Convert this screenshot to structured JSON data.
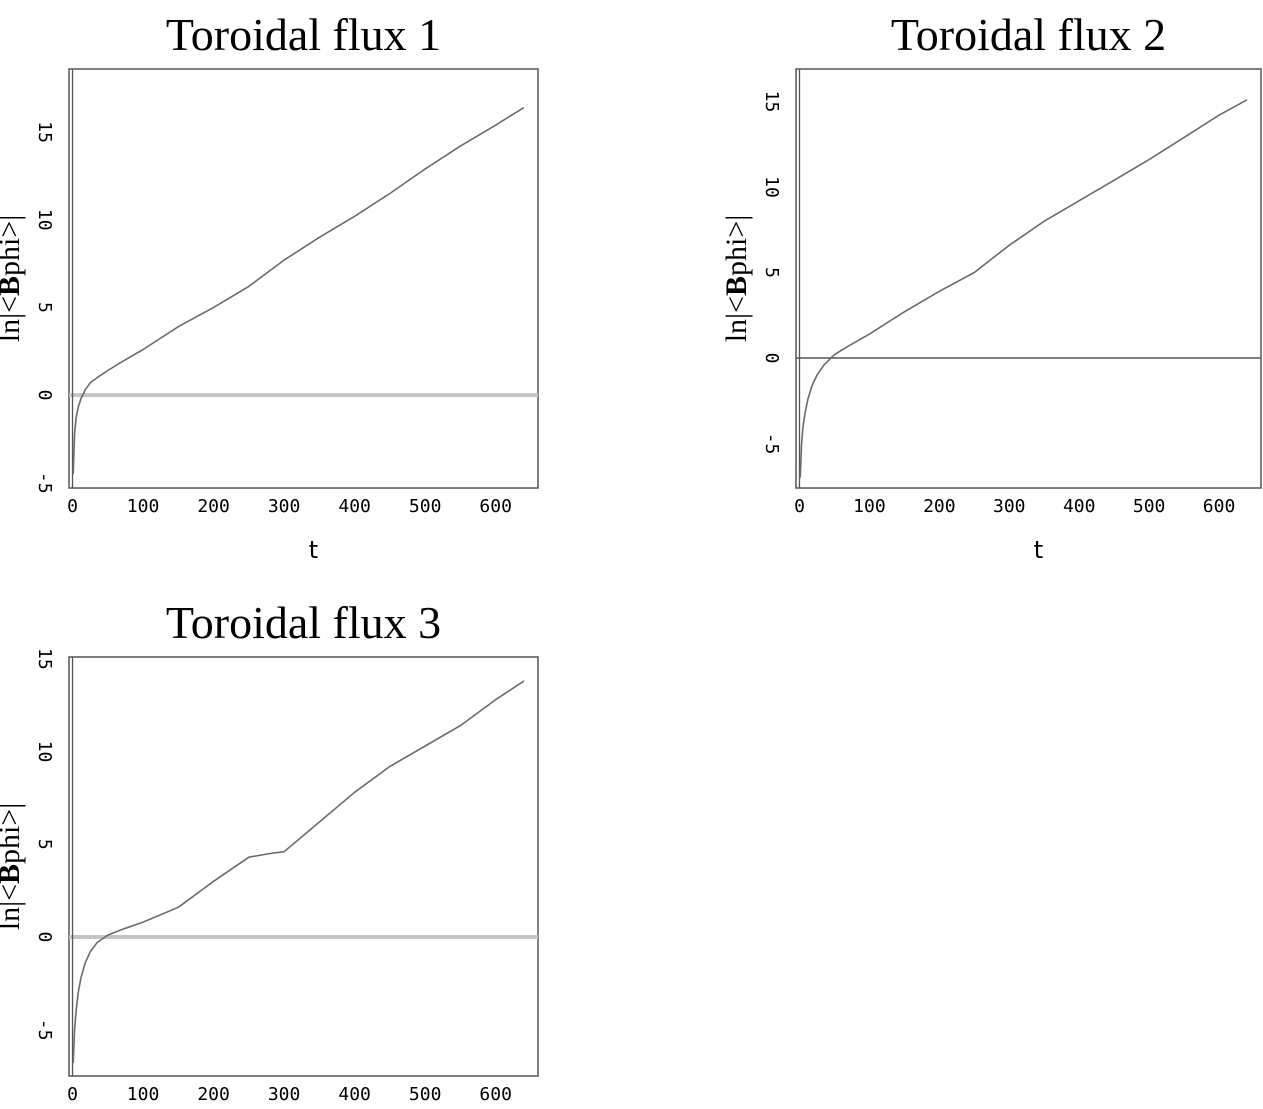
{
  "chart_data": [
    {
      "type": "line",
      "title": "Toroidal flux 1",
      "xlabel": "t",
      "ylabel": {
        "prefix": "ln|<",
        "bold": "B",
        "suffix": "phi>|"
      },
      "xlim": [
        -5,
        660
      ],
      "ylim": [
        -5.3,
        18.6
      ],
      "xticks": [
        "0",
        "100",
        "200",
        "300",
        "400",
        "500",
        "600"
      ],
      "yticks": [
        "-5",
        "0",
        "5",
        "10",
        "15"
      ],
      "zero_line_style": "thick",
      "x": [
        1,
        3,
        5,
        8,
        12,
        18,
        25,
        35,
        50,
        70,
        100,
        150,
        200,
        250,
        300,
        350,
        400,
        450,
        500,
        550,
        600,
        640
      ],
      "y": [
        -4.5,
        -2.2,
        -1.3,
        -0.7,
        -0.2,
        0.3,
        0.7,
        1.0,
        1.4,
        1.9,
        2.6,
        3.9,
        5.0,
        6.2,
        7.7,
        9.0,
        10.2,
        11.5,
        12.9,
        14.2,
        15.4,
        16.4
      ]
    },
    {
      "type": "line",
      "title": "Toroidal flux 2",
      "xlabel": "t",
      "ylabel": {
        "prefix": "ln|<",
        "bold": "B",
        "suffix": "phi>|"
      },
      "xlim": [
        -5,
        660
      ],
      "ylim": [
        -7.6,
        16.9
      ],
      "xticks": [
        "0",
        "100",
        "200",
        "300",
        "400",
        "500",
        "600"
      ],
      "yticks": [
        "-5",
        "0",
        "5",
        "10",
        "15"
      ],
      "zero_line_style": "thin",
      "x": [
        1,
        3,
        5,
        8,
        12,
        18,
        25,
        35,
        50,
        70,
        100,
        150,
        200,
        250,
        300,
        350,
        400,
        450,
        500,
        550,
        600,
        640
      ],
      "y": [
        -7.0,
        -5.0,
        -4.0,
        -3.2,
        -2.4,
        -1.6,
        -1.0,
        -0.4,
        0.2,
        0.7,
        1.4,
        2.7,
        3.9,
        5.0,
        6.6,
        8.0,
        9.2,
        10.4,
        11.6,
        12.9,
        14.2,
        15.1
      ]
    },
    {
      "type": "line",
      "title": "Toroidal flux 3",
      "xlabel": "",
      "ylabel": {
        "prefix": "ln|<",
        "bold": "B",
        "suffix": "phi>|"
      },
      "xlim": [
        -5,
        660
      ],
      "ylim": [
        -7.5,
        15.1
      ],
      "xticks": [
        "0",
        "100",
        "200",
        "300",
        "400",
        "500",
        "600"
      ],
      "yticks": [
        "-5",
        "0",
        "5",
        "10",
        "15"
      ],
      "zero_line_style": "thick",
      "x": [
        1,
        3,
        5,
        8,
        12,
        18,
        25,
        35,
        50,
        70,
        100,
        150,
        200,
        250,
        280,
        300,
        350,
        400,
        450,
        500,
        550,
        600,
        640
      ],
      "y": [
        -6.8,
        -5.0,
        -4.0,
        -3.0,
        -2.2,
        -1.4,
        -0.8,
        -0.3,
        0.1,
        0.4,
        0.8,
        1.6,
        3.0,
        4.3,
        4.5,
        4.6,
        6.2,
        7.8,
        9.2,
        10.3,
        11.4,
        12.8,
        13.8
      ]
    }
  ]
}
